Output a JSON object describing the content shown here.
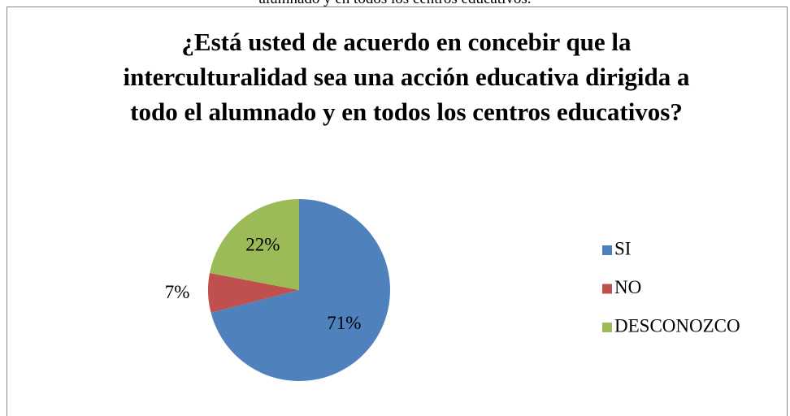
{
  "caption": "alumnado y en todos los centros educativos.",
  "chart_data": {
    "type": "pie",
    "title": "¿Está usted de acuerdo en concebir que la interculturalidad sea una acción educativa dirigida a todo el alumnado y en todos los centros educativos?",
    "categories": [
      "SI",
      "NO",
      "DESCONOZCO"
    ],
    "values": [
      71,
      7,
      22
    ],
    "value_labels": [
      "71%",
      "7%",
      "22%"
    ],
    "colors": [
      "#4f81bd",
      "#c0504d",
      "#9bbb59"
    ],
    "legend": "right"
  }
}
